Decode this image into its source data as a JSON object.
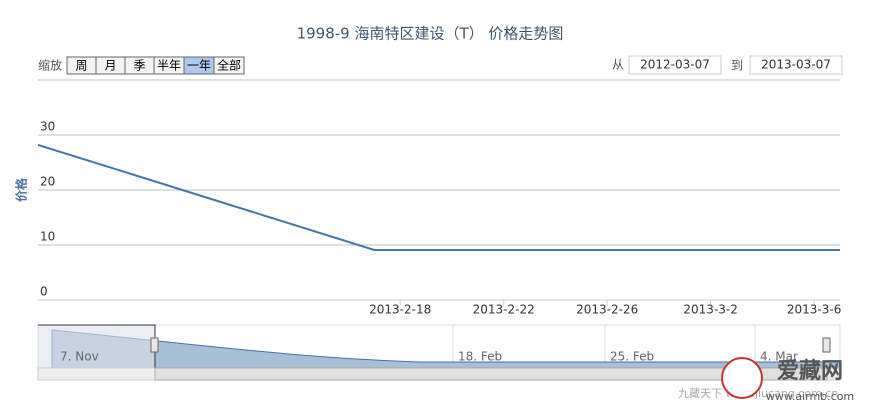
{
  "chart_data": {
    "type": "line",
    "title": "1998-9 海南特区建设（T） 价格走势图",
    "zoom_label": "缩放",
    "zoom_buttons": [
      "周",
      "月",
      "季",
      "半年",
      "一年",
      "全部"
    ],
    "zoom_selected": "一年",
    "from_label": "从",
    "from_date": "2012-03-07",
    "to_label": "到",
    "to_date": "2013-03-07",
    "y_label": "价格",
    "x": [
      "2013-02-04",
      "2013-02-17",
      "2013-03-07"
    ],
    "series": [
      {
        "name": "价格",
        "color": "#4572a7",
        "values": [
          28.2,
          9.1,
          9.1
        ]
      }
    ],
    "xlim": [
      "2013-02-04",
      "2013-03-07"
    ],
    "xticks": [
      {
        "value": "2013-02-18",
        "label": "2013-2-18"
      },
      {
        "value": "2013-02-22",
        "label": "2013-2-22"
      },
      {
        "value": "2013-02-26",
        "label": "2013-2-26"
      },
      {
        "value": "2013-03-02",
        "label": "2013-3-2"
      },
      {
        "value": "2013-03-06",
        "label": "2013-3-6"
      }
    ],
    "ylim": [
      0,
      40
    ],
    "yticks": [
      0,
      10,
      20,
      30
    ],
    "grid": true,
    "navigator_labels": [
      "7. Nov",
      "18. Feb",
      "25. Feb",
      "4. Mar"
    ],
    "watermark": [
      "九藏天下 www.jiucang.com.cn",
      "爱藏网",
      "www.airmb.com"
    ]
  }
}
